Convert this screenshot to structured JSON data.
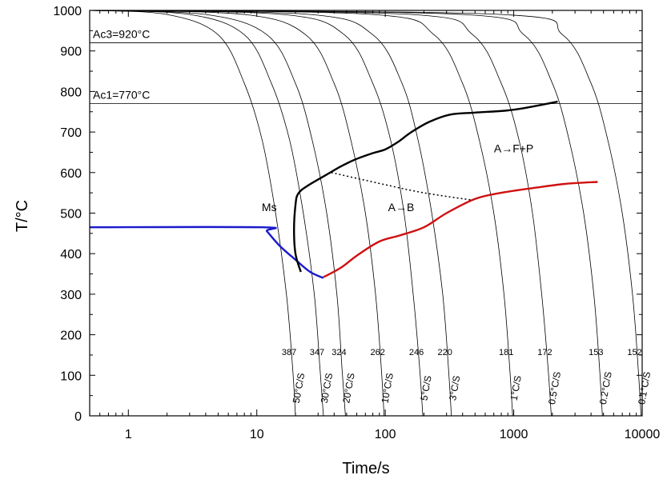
{
  "chart_data": {
    "type": "line",
    "xlabel": "Time/s",
    "ylabel": "T/°C",
    "xscale": "log",
    "xlim": [
      0.5,
      10000
    ],
    "ylim": [
      0,
      1000
    ],
    "grid": false,
    "xticks": [
      {
        "value": 1,
        "label": "1"
      },
      {
        "value": 10,
        "label": "10"
      },
      {
        "value": 100,
        "label": "100"
      },
      {
        "value": 1000,
        "label": "1000"
      },
      {
        "value": 10000,
        "label": "10000"
      }
    ],
    "yticks": [
      {
        "value": 0,
        "label": "0"
      },
      {
        "value": 100,
        "label": "100"
      },
      {
        "value": 200,
        "label": "200"
      },
      {
        "value": 300,
        "label": "300"
      },
      {
        "value": 400,
        "label": "400"
      },
      {
        "value": 500,
        "label": "500"
      },
      {
        "value": 600,
        "label": "600"
      },
      {
        "value": 700,
        "label": "700"
      },
      {
        "value": 800,
        "label": "800"
      },
      {
        "value": 900,
        "label": "900"
      },
      {
        "value": 1000,
        "label": "1000"
      }
    ],
    "reference_lines": [
      {
        "label": "Ac3=920°C",
        "y": 920
      },
      {
        "label": "Ac1=770°C",
        "y": 770
      }
    ],
    "region_labels": [
      {
        "label": "Ms",
        "x": 12.5,
        "y": 505
      },
      {
        "label": "A→B",
        "x": 133,
        "y": 505
      },
      {
        "label": "A→F+P",
        "x": 1000,
        "y": 650
      }
    ],
    "cooling_curves": [
      {
        "rate": "50°C/S",
        "hardness": "387",
        "points": [
          [
            0.5,
            1000
          ],
          [
            2,
            990
          ],
          [
            5,
            940
          ],
          [
            8,
            820
          ],
          [
            11,
            680
          ],
          [
            14,
            500
          ],
          [
            17,
            300
          ],
          [
            19,
            120
          ],
          [
            20,
            0
          ]
        ]
      },
      {
        "rate": "30°C/S",
        "hardness": "347",
        "points": [
          [
            0.5,
            1000
          ],
          [
            3,
            990
          ],
          [
            8,
            940
          ],
          [
            13,
            820
          ],
          [
            18,
            680
          ],
          [
            23,
            500
          ],
          [
            28,
            300
          ],
          [
            31,
            120
          ],
          [
            33,
            0
          ]
        ]
      },
      {
        "rate": "20°C/S",
        "hardness": "324",
        "points": [
          [
            0.5,
            1000
          ],
          [
            4,
            990
          ],
          [
            12,
            940
          ],
          [
            20,
            820
          ],
          [
            27,
            680
          ],
          [
            35,
            500
          ],
          [
            42,
            300
          ],
          [
            46,
            120
          ],
          [
            49,
            0
          ]
        ]
      },
      {
        "rate": "10°C/S",
        "hardness": "262",
        "points": [
          [
            0.5,
            1000
          ],
          [
            8,
            990
          ],
          [
            24,
            940
          ],
          [
            40,
            820
          ],
          [
            54,
            680
          ],
          [
            70,
            500
          ],
          [
            84,
            300
          ],
          [
            93,
            120
          ],
          [
            98,
            0
          ]
        ]
      },
      {
        "rate": "5°C/S",
        "hardness": "246",
        "points": [
          [
            0.5,
            1000
          ],
          [
            16,
            990
          ],
          [
            48,
            940
          ],
          [
            80,
            820
          ],
          [
            110,
            680
          ],
          [
            140,
            500
          ],
          [
            165,
            300
          ],
          [
            185,
            120
          ],
          [
            196,
            0
          ]
        ]
      },
      {
        "rate": "3°C/S",
        "hardness": "220",
        "points": [
          [
            0.5,
            1000
          ],
          [
            26,
            990
          ],
          [
            80,
            940
          ],
          [
            135,
            820
          ],
          [
            180,
            680
          ],
          [
            230,
            500
          ],
          [
            280,
            300
          ],
          [
            310,
            120
          ],
          [
            327,
            0
          ]
        ]
      },
      {
        "rate": "1°C/S",
        "hardness": "181",
        "points": [
          [
            0.5,
            1000
          ],
          [
            80,
            990
          ],
          [
            240,
            940
          ],
          [
            400,
            820
          ],
          [
            540,
            680
          ],
          [
            700,
            500
          ],
          [
            840,
            300
          ],
          [
            930,
            120
          ],
          [
            980,
            0
          ]
        ]
      },
      {
        "rate": "0.5°C/S",
        "hardness": "172",
        "points": [
          [
            0.5,
            1000
          ],
          [
            160,
            990
          ],
          [
            480,
            940
          ],
          [
            800,
            820
          ],
          [
            1100,
            680
          ],
          [
            1400,
            500
          ],
          [
            1650,
            300
          ],
          [
            1850,
            120
          ],
          [
            1960,
            0
          ]
        ]
      },
      {
        "rate": "0.2°C/S",
        "hardness": "153",
        "points": [
          [
            0.5,
            1000
          ],
          [
            400,
            990
          ],
          [
            1200,
            940
          ],
          [
            2000,
            820
          ],
          [
            2700,
            680
          ],
          [
            3500,
            500
          ],
          [
            4200,
            300
          ],
          [
            4650,
            120
          ],
          [
            4900,
            0
          ]
        ]
      },
      {
        "rate": "0.1°C/S",
        "hardness": "152",
        "points": [
          [
            0.5,
            1000
          ],
          [
            800,
            990
          ],
          [
            2400,
            940
          ],
          [
            4000,
            820
          ],
          [
            5400,
            680
          ],
          [
            7000,
            500
          ],
          [
            8400,
            300
          ],
          [
            9300,
            120
          ],
          [
            9800,
            0
          ]
        ]
      }
    ],
    "series": [
      {
        "color": "#1a1acc",
        "points": [
          [
            0.5,
            465
          ],
          [
            11,
            465
          ],
          [
            12,
            455
          ],
          [
            15,
            420
          ],
          [
            20,
            385
          ],
          [
            26,
            355
          ],
          [
            33,
            340
          ]
        ]
      },
      {
        "color": "#000000",
        "points": [
          [
            22,
            355
          ],
          [
            20,
            400
          ],
          [
            19.5,
            460
          ],
          [
            20,
            520
          ],
          [
            21,
            548
          ],
          [
            25,
            568
          ],
          [
            35,
            595
          ],
          [
            45,
            615
          ],
          [
            58,
            632
          ],
          [
            80,
            648
          ],
          [
            100,
            657
          ],
          [
            125,
            675
          ],
          [
            160,
            700
          ],
          [
            220,
            725
          ],
          [
            320,
            743
          ],
          [
            500,
            748
          ],
          [
            1000,
            755
          ],
          [
            2200,
            775
          ]
        ]
      },
      {
        "color": "#d01010",
        "points": [
          [
            33,
            342
          ],
          [
            45,
            365
          ],
          [
            60,
            395
          ],
          [
            90,
            430
          ],
          [
            130,
            445
          ],
          [
            200,
            465
          ],
          [
            300,
            500
          ],
          [
            500,
            535
          ],
          [
            800,
            550
          ],
          [
            1500,
            563
          ],
          [
            2500,
            572
          ],
          [
            4500,
            577
          ]
        ]
      },
      {
        "color": "#000000",
        "dashed": true,
        "points": [
          [
            38,
            600
          ],
          [
            100,
            570
          ],
          [
            200,
            550
          ],
          [
            480,
            532
          ]
        ]
      }
    ]
  }
}
